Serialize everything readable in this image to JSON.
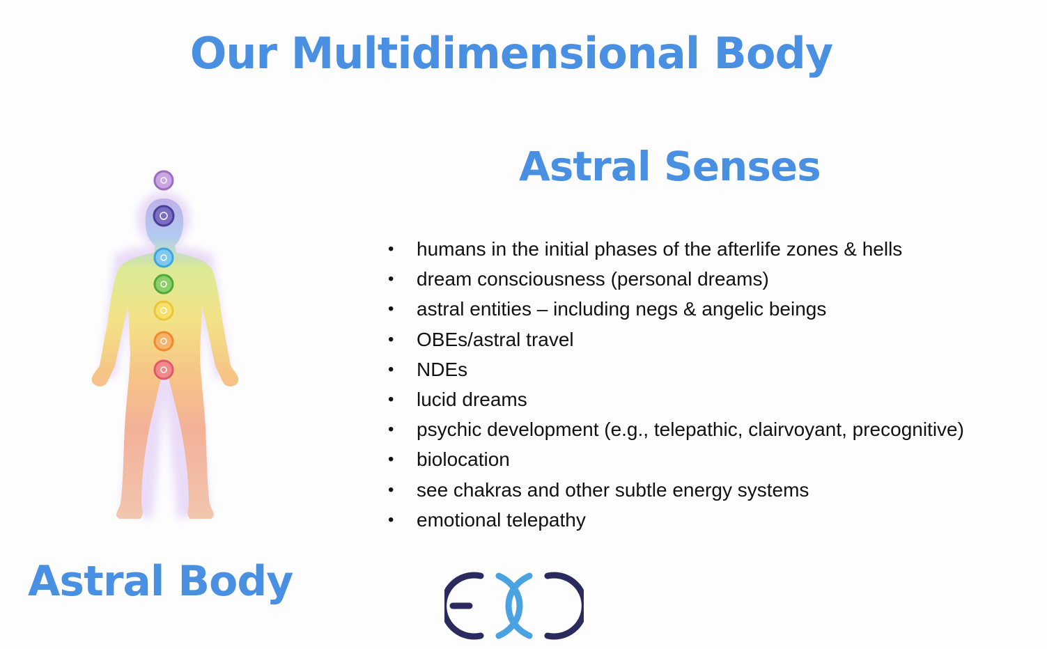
{
  "slide": {
    "title": "Our Multidimensional Body",
    "subtitle": "Astral Senses",
    "bottom_label": "Astral Body",
    "senses": [
      "humans in the initial phases of the afterlife zones & hells",
      "dream consciousness (personal dreams)",
      "astral entities – including negs & angelic beings",
      "OBEs/astral travel",
      "NDEs",
      "lucid dreams",
      "psychic development (e.g., telepathic, clairvoyant, precognitive)",
      "biolocation",
      "see chakras and other subtle energy systems",
      "emotional telepathy"
    ],
    "colors": {
      "heading": "#4a90e2",
      "logo_dark": "#2b2a5e",
      "logo_light": "#4aa3e0"
    }
  }
}
